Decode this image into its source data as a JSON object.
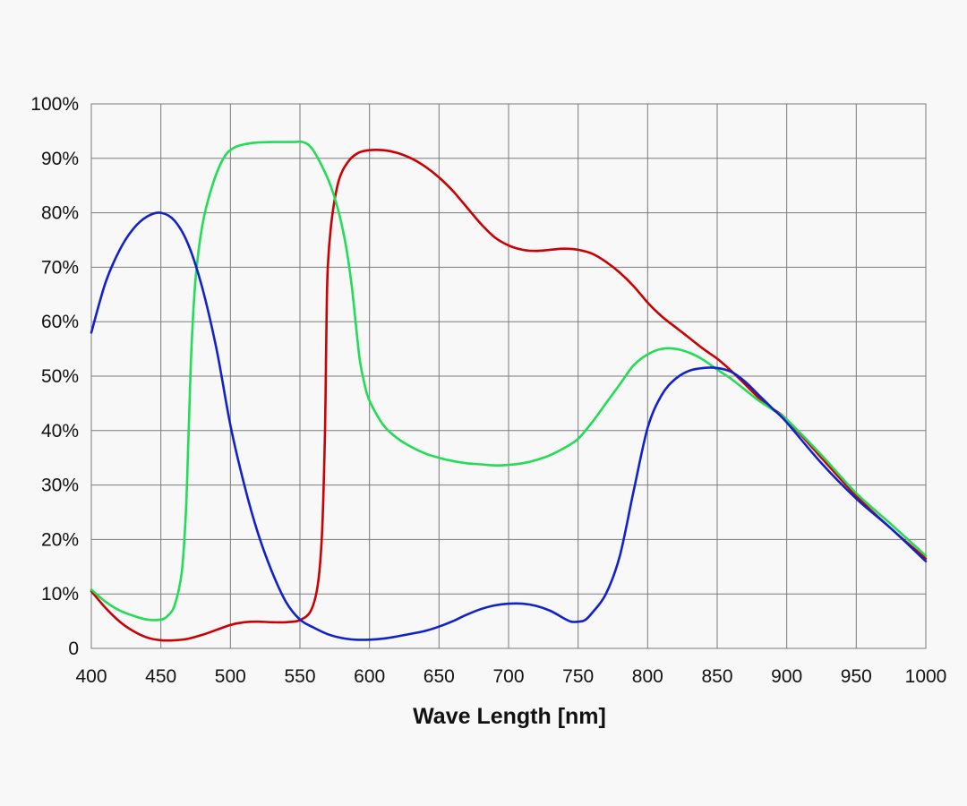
{
  "chart_data": {
    "type": "line",
    "title": "",
    "xlabel": "Wave Length [nm]",
    "ylabel": "",
    "xlim": [
      400,
      1000
    ],
    "ylim": [
      0,
      100
    ],
    "grid": true,
    "x_ticks": [
      "400",
      "450",
      "500",
      "550",
      "600",
      "650",
      "700",
      "750",
      "800",
      "850",
      "900",
      "950",
      "1000"
    ],
    "y_ticks": [
      "0",
      "10%",
      "20%",
      "30%",
      "40%",
      "50%",
      "60%",
      "70%",
      "80%",
      "90%",
      "100%"
    ],
    "series": [
      {
        "color": "#cc0000",
        "points": [
          [
            400,
            10.5
          ],
          [
            410,
            7.5
          ],
          [
            420,
            5
          ],
          [
            430,
            3.2
          ],
          [
            440,
            2
          ],
          [
            450,
            1.5
          ],
          [
            460,
            1.5
          ],
          [
            470,
            1.8
          ],
          [
            480,
            2.5
          ],
          [
            490,
            3.4
          ],
          [
            500,
            4.3
          ],
          [
            510,
            4.8
          ],
          [
            520,
            4.9
          ],
          [
            530,
            4.8
          ],
          [
            540,
            4.8
          ],
          [
            550,
            5.2
          ],
          [
            558,
            7
          ],
          [
            563,
            12
          ],
          [
            566,
            22
          ],
          [
            568,
            40
          ],
          [
            569,
            58
          ],
          [
            570,
            70
          ],
          [
            573,
            79
          ],
          [
            578,
            86
          ],
          [
            585,
            89.5
          ],
          [
            592,
            91
          ],
          [
            600,
            91.5
          ],
          [
            610,
            91.5
          ],
          [
            620,
            91
          ],
          [
            630,
            90
          ],
          [
            640,
            88.5
          ],
          [
            650,
            86.5
          ],
          [
            660,
            84
          ],
          [
            670,
            81
          ],
          [
            680,
            78
          ],
          [
            690,
            75.5
          ],
          [
            700,
            74
          ],
          [
            710,
            73.2
          ],
          [
            720,
            73
          ],
          [
            730,
            73.2
          ],
          [
            740,
            73.4
          ],
          [
            750,
            73.2
          ],
          [
            760,
            72.5
          ],
          [
            770,
            71
          ],
          [
            780,
            69
          ],
          [
            790,
            66.5
          ],
          [
            800,
            63.5
          ],
          [
            810,
            61
          ],
          [
            820,
            59
          ],
          [
            830,
            57
          ],
          [
            840,
            55
          ],
          [
            850,
            53.2
          ],
          [
            860,
            51
          ],
          [
            870,
            48.5
          ],
          [
            880,
            46
          ],
          [
            890,
            44
          ],
          [
            900,
            42
          ],
          [
            925,
            35
          ],
          [
            950,
            28
          ],
          [
            975,
            22
          ],
          [
            1000,
            16.5
          ]
        ]
      },
      {
        "color": "#22dd55",
        "points": [
          [
            400,
            10.8
          ],
          [
            410,
            8.6
          ],
          [
            420,
            7
          ],
          [
            430,
            6
          ],
          [
            440,
            5.3
          ],
          [
            450,
            5.3
          ],
          [
            455,
            6
          ],
          [
            460,
            8
          ],
          [
            465,
            14
          ],
          [
            468,
            25
          ],
          [
            470,
            40
          ],
          [
            472,
            55
          ],
          [
            475,
            68
          ],
          [
            480,
            78
          ],
          [
            487,
            85
          ],
          [
            495,
            90
          ],
          [
            503,
            92
          ],
          [
            515,
            92.8
          ],
          [
            530,
            93
          ],
          [
            545,
            93
          ],
          [
            552,
            93
          ],
          [
            558,
            92
          ],
          [
            565,
            89
          ],
          [
            572,
            85
          ],
          [
            578,
            80
          ],
          [
            583,
            74
          ],
          [
            587,
            67
          ],
          [
            590,
            60
          ],
          [
            593,
            53
          ],
          [
            596,
            49
          ],
          [
            600,
            45.5
          ],
          [
            610,
            41
          ],
          [
            620,
            38.6
          ],
          [
            630,
            37
          ],
          [
            640,
            35.8
          ],
          [
            650,
            35
          ],
          [
            660,
            34.4
          ],
          [
            670,
            34
          ],
          [
            680,
            33.8
          ],
          [
            690,
            33.6
          ],
          [
            700,
            33.7
          ],
          [
            710,
            34
          ],
          [
            720,
            34.6
          ],
          [
            730,
            35.5
          ],
          [
            740,
            36.8
          ],
          [
            750,
            38.5
          ],
          [
            760,
            41.5
          ],
          [
            770,
            45
          ],
          [
            780,
            48.5
          ],
          [
            790,
            52
          ],
          [
            800,
            54
          ],
          [
            810,
            55
          ],
          [
            820,
            55
          ],
          [
            830,
            54.3
          ],
          [
            840,
            53
          ],
          [
            850,
            51.2
          ],
          [
            860,
            49.5
          ],
          [
            870,
            47.5
          ],
          [
            880,
            45.5
          ],
          [
            890,
            43.8
          ],
          [
            900,
            42
          ],
          [
            925,
            35.5
          ],
          [
            950,
            28.5
          ],
          [
            975,
            22.8
          ],
          [
            1000,
            17
          ]
        ]
      },
      {
        "color": "#1122cc",
        "points": [
          [
            400,
            58
          ],
          [
            410,
            67
          ],
          [
            420,
            73
          ],
          [
            430,
            77
          ],
          [
            440,
            79.3
          ],
          [
            450,
            80
          ],
          [
            460,
            78.5
          ],
          [
            470,
            74
          ],
          [
            480,
            66
          ],
          [
            490,
            55
          ],
          [
            500,
            41
          ],
          [
            510,
            30
          ],
          [
            520,
            21
          ],
          [
            530,
            14
          ],
          [
            540,
            8.5
          ],
          [
            550,
            5.3
          ],
          [
            560,
            3.8
          ],
          [
            570,
            2.6
          ],
          [
            580,
            1.9
          ],
          [
            590,
            1.6
          ],
          [
            600,
            1.6
          ],
          [
            610,
            1.8
          ],
          [
            620,
            2.2
          ],
          [
            630,
            2.7
          ],
          [
            640,
            3.2
          ],
          [
            650,
            4
          ],
          [
            660,
            5
          ],
          [
            670,
            6.2
          ],
          [
            680,
            7.2
          ],
          [
            690,
            7.9
          ],
          [
            700,
            8.2
          ],
          [
            710,
            8.2
          ],
          [
            720,
            7.8
          ],
          [
            730,
            6.9
          ],
          [
            740,
            5.5
          ],
          [
            745,
            4.9
          ],
          [
            750,
            4.9
          ],
          [
            755,
            5.2
          ],
          [
            760,
            6.5
          ],
          [
            770,
            10
          ],
          [
            780,
            17
          ],
          [
            790,
            29
          ],
          [
            800,
            40.5
          ],
          [
            810,
            46.5
          ],
          [
            820,
            49.5
          ],
          [
            830,
            51
          ],
          [
            840,
            51.5
          ],
          [
            850,
            51.5
          ],
          [
            860,
            50.8
          ],
          [
            870,
            49
          ],
          [
            880,
            46.5
          ],
          [
            890,
            44
          ],
          [
            900,
            41.5
          ],
          [
            925,
            34
          ],
          [
            950,
            27.5
          ],
          [
            975,
            22
          ],
          [
            1000,
            16
          ]
        ]
      }
    ]
  }
}
